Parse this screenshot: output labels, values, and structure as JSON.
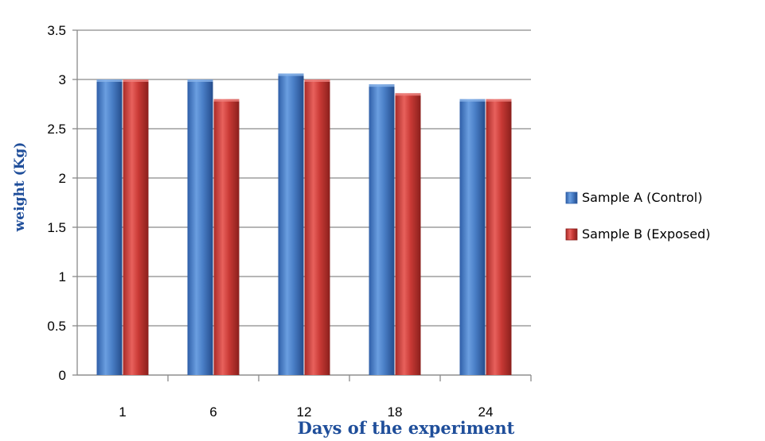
{
  "chart_data": {
    "type": "bar",
    "title": "",
    "xlabel": "Days of the experiment",
    "ylabel": "weight (Kg)",
    "categories": [
      "1",
      "6",
      "12",
      "18",
      "24"
    ],
    "series": [
      {
        "name": "Sample A (Control)",
        "values": [
          3.0,
          3.0,
          3.06,
          2.95,
          2.8
        ],
        "color": "#4a7fc7"
      },
      {
        "name": "Sample B (Exposed)",
        "values": [
          3.0,
          2.8,
          3.0,
          2.86,
          2.8
        ],
        "color": "#c93a36"
      }
    ],
    "ylim": [
      0,
      3.5
    ],
    "yticks": [
      "0",
      "0.5",
      "1",
      "1.5",
      "2",
      "2.5",
      "3",
      "3.5"
    ],
    "grid": true,
    "legend_position": "right"
  }
}
